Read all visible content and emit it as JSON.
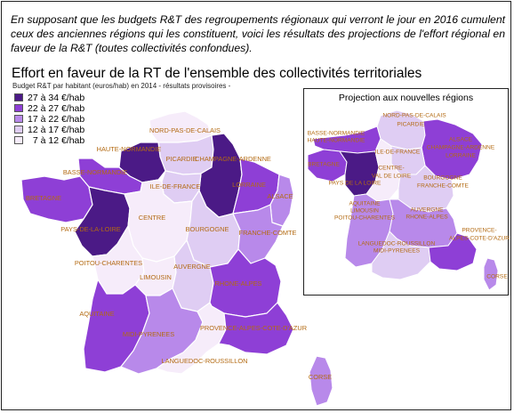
{
  "intro_text": "En supposant que les budgets R&T des regroupements régionaux qui verront le jour en 2016 cumulent ceux des anciennes régions qui les constituent, voici les résultats des projections de l'effort régional en faveur de la R&T (toutes collectivités confondues).",
  "map": {
    "title": "Effort en faveur de la RT de l'ensemble des collectivités territoriales",
    "subtitle": "Budget R&T par habitant (euros/hab) en 2014 - résultats provisoires -"
  },
  "legend": [
    {
      "label": "27 à 34 €/hab",
      "color": "#4b1a86"
    },
    {
      "label": "22 à 27 €/hab",
      "color": "#8e3fd6"
    },
    {
      "label": "17 à 22 €/hab",
      "color": "#b889ea"
    },
    {
      "label": "12 à 17 €/hab",
      "color": "#dfcdf3"
    },
    {
      "label": "  7 à 12 €/hab",
      "color": "#f6ecfa"
    }
  ],
  "regions": {
    "nord": "NORD-PAS-DE-CALAIS",
    "haute_normandie": "HAUTE-NORMANDIE",
    "picardie": "PICARDIE",
    "champagne": "CHAMPAGNE-ARDENNE",
    "basse_normandie": "BASSE-NORMANDIE",
    "ile_de_france": "ILE-DE-FRANCE",
    "lorraine": "LORRAINE",
    "alsace": "ALSACE",
    "bretagne": "BRETAGNE",
    "centre": "CENTRE",
    "bourgogne": "BOURGOGNE",
    "franche_comte": "FRANCHE-COMTE",
    "pays_de_la_loire": "PAYS-DE-LA-LOIRE",
    "poitou": "POITOU-CHARENTES",
    "limousin": "LIMOUSIN",
    "auvergne": "AUVERGNE",
    "rhone_alpes": "RHONE-ALPES",
    "aquitaine": "AQUITAINE",
    "midi_pyrenees": "MIDI-PYRENEES",
    "paca": "PROVENCE-ALPES-COTE-D'AZUR",
    "languedoc": "LANGUEDOC-ROUSSILLON",
    "corse": "CORSE"
  },
  "inset": {
    "title": "Projection aux nouvelles régions",
    "labels": {
      "nord_picardie_1": "NORD-PAS-DE-CALAIS",
      "nord_picardie_2": "PICARDIE",
      "normandie_1": "BASSE-NORMANDIE",
      "normandie_2": "HAUTE-NORMANDIE",
      "alsace": "ALSACE",
      "acal_1": "CHAMPAGNE-ARDENNE",
      "acal_2": "LORRAINE",
      "bretagne": "BRETAGNE",
      "idf": "ILE-DE-FRANCE",
      "centre_1": "CENTRE-",
      "centre_2": "VAL DE LOIRE",
      "bfc_1": "BOURGOGNE",
      "bfc_2": "FRANCHE-COMTE",
      "pdl": "PAYS DE LA LOIRE",
      "alpc_1": "AQUITAINE",
      "alpc_2": "LIMOUSIN",
      "alpc_3": "POITOU-CHARENTES",
      "ara_1": "AUVERGNE",
      "ara_2": "RHONE-ALPES",
      "lrmp_1": "LANGUEDOC-ROUSSILLON",
      "lrmp_2": "MIDI-PYRENEES",
      "paca_1": "PROVENCE-",
      "paca_2": "ALPES-COTE-D'AZUR",
      "corse": "CORSE"
    }
  }
}
